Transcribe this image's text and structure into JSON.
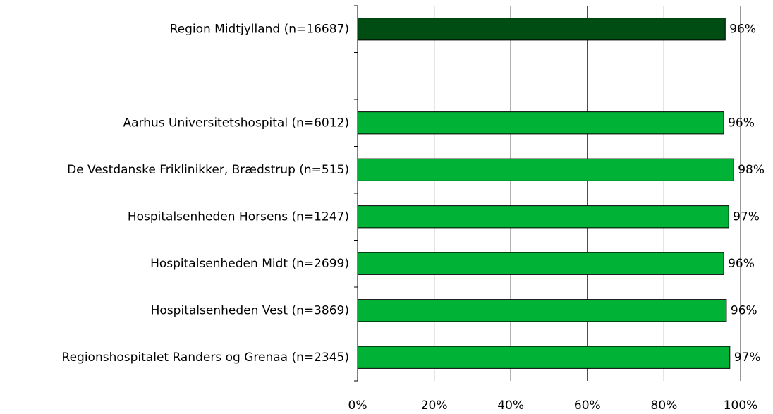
{
  "chart_data": {
    "type": "hbar",
    "categories": [
      "Region Midtjylland (n=16687)",
      null,
      "Aarhus Universitetshospital (n=6012)",
      "De Vestdanske Friklinikker, Brædstrup (n=515)",
      "Hospitalsenheden Horsens (n=1247)",
      "Hospitalsenheden Midt (n=2699)",
      "Hospitalsenheden Vest (n=3869)",
      "Regionshospitalet Randers og Grenaa (n=2345)"
    ],
    "values": [
      96.0,
      null,
      95.6,
      98.2,
      96.9,
      95.6,
      96.3,
      97.2
    ],
    "value_labels": [
      "96%",
      null,
      "96%",
      "98%",
      "97%",
      "96%",
      "96%",
      "97%"
    ],
    "colors": [
      "#004d14",
      null,
      "#00b336",
      "#00b336",
      "#00b336",
      "#00b336",
      "#00b336",
      "#00b336"
    ],
    "xlim": [
      0,
      100
    ],
    "xticks": [
      {
        "value": 0,
        "label": "0%"
      },
      {
        "value": 20,
        "label": "20%"
      },
      {
        "value": 40,
        "label": "40%"
      },
      {
        "value": 60,
        "label": "60%"
      },
      {
        "value": 80,
        "label": "80%"
      },
      {
        "value": 100,
        "label": "100%"
      }
    ],
    "grid": true
  }
}
